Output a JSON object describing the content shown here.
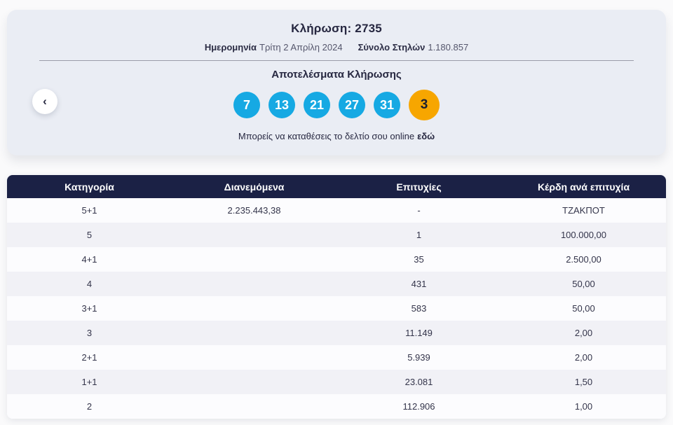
{
  "colors": {
    "ball_blue": "#16a9e3",
    "ball_orange": "#f7a600",
    "table_header_navy": "#1b2145",
    "card_background": "#eaedf4"
  },
  "card": {
    "title": "Κλήρωση: 2735",
    "date_label": "Ημερομηνία",
    "date_value": "Τρίτη 2 Απρίλη 2024",
    "columns_label": "Σύνολο Στηλών",
    "columns_value": "1.180.857",
    "results_heading": "Αποτελέσματα Κλήρωσης",
    "balls": [
      {
        "value": "7",
        "type": "main"
      },
      {
        "value": "13",
        "type": "main"
      },
      {
        "value": "21",
        "type": "main"
      },
      {
        "value": "27",
        "type": "main"
      },
      {
        "value": "31",
        "type": "main"
      },
      {
        "value": "3",
        "type": "bonus"
      }
    ],
    "cta_text": "Μπορείς να καταθέσεις το δελτίο σου online",
    "cta_link_text": "εδώ"
  },
  "nav": {
    "prev_button_glyph": "‹"
  },
  "table": {
    "headers": [
      "Κατηγορία",
      "Διανεμόμενα",
      "Επιτυχίες",
      "Κέρδη ανά επιτυχία"
    ],
    "rows": [
      [
        "5+1",
        "2.235.443,38",
        "-",
        "ΤΖΑΚΠΟΤ"
      ],
      [
        "5",
        "",
        "1",
        "100.000,00"
      ],
      [
        "4+1",
        "",
        "35",
        "2.500,00"
      ],
      [
        "4",
        "",
        "431",
        "50,00"
      ],
      [
        "3+1",
        "",
        "583",
        "50,00"
      ],
      [
        "3",
        "",
        "11.149",
        "2,00"
      ],
      [
        "2+1",
        "",
        "5.939",
        "2,00"
      ],
      [
        "1+1",
        "",
        "23.081",
        "1,50"
      ],
      [
        "2",
        "",
        "112.906",
        "1,00"
      ]
    ]
  }
}
